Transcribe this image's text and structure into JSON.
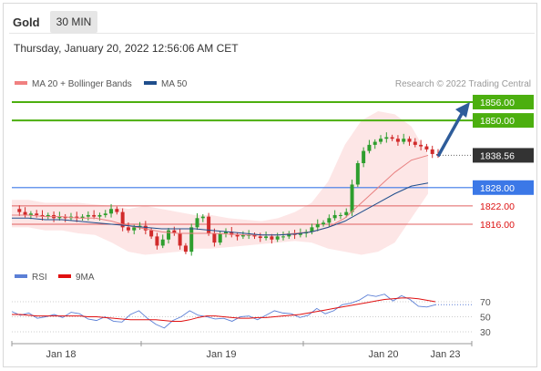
{
  "header": {
    "title": "Gold",
    "timeframe": "30 MIN"
  },
  "datetime": "Thursday, January 20, 2022 12:56:06 AM CET",
  "legend": {
    "items": [
      {
        "label": "MA 20 + Bollinger Bands",
        "color": "#f08080"
      },
      {
        "label": "MA 50",
        "color": "#1f4e8c"
      }
    ],
    "credit": "Research © 2022 Trading Central"
  },
  "rsi_legend": {
    "items": [
      {
        "label": "RSI",
        "color": "#5b7fd6"
      },
      {
        "label": "9MA",
        "color": "#e01010"
      }
    ]
  },
  "colors": {
    "resistance": "#4caf0f",
    "pivot": "#3b78e7",
    "support": "#e06060",
    "support_text": "#dd1111",
    "last_price": "#333333",
    "arrow": "#2e5c9a",
    "bull_candle": "#2e9e2e",
    "bear_candle": "#d12b2b",
    "band_fill": "#fde3e3"
  },
  "chart_data": [
    {
      "type": "candlestick",
      "title": "Gold",
      "timeframe": "30 MIN",
      "x_ticks": [
        "Jan 18",
        "Jan 19",
        "Jan 20",
        "Jan 23"
      ],
      "ylim": [
        1805,
        1862
      ],
      "levels": [
        {
          "label": "1856.00",
          "value": 1856.0,
          "kind": "resistance"
        },
        {
          "label": "1850.00",
          "value": 1850.0,
          "kind": "resistance"
        },
        {
          "label": "1838.56",
          "value": 1838.56,
          "kind": "last"
        },
        {
          "label": "1828.00",
          "value": 1828.0,
          "kind": "pivot"
        },
        {
          "label": "1822.00",
          "value": 1822.0,
          "kind": "support"
        },
        {
          "label": "1816.00",
          "value": 1816.0,
          "kind": "support"
        }
      ],
      "ohlc_path": [
        1821,
        1820,
        1819,
        1819.5,
        1819,
        1818.5,
        1819,
        1818,
        1818.5,
        1818,
        1818.5,
        1818,
        1818.5,
        1819,
        1818.5,
        1819,
        1819.5,
        1821,
        1820,
        1815,
        1814,
        1815,
        1815.5,
        1814,
        1812,
        1809,
        1811,
        1814,
        1813,
        1809,
        1807,
        1815,
        1818,
        1818.5,
        1813,
        1810,
        1813,
        1813.5,
        1812.5,
        1812,
        1812.5,
        1812.5,
        1812,
        1811.5,
        1812,
        1811,
        1812,
        1812,
        1813,
        1812.5,
        1813,
        1813.5,
        1815,
        1816,
        1816.5,
        1818,
        1819,
        1819,
        1820,
        1829,
        1836,
        1840,
        1842,
        1843,
        1844,
        1844.5,
        1844,
        1843,
        1844,
        1843,
        1842,
        1841.5,
        1840.5,
        1839,
        1838.56
      ],
      "ma20": [
        1819,
        1819,
        1818.5,
        1818.5,
        1818,
        1818,
        1817,
        1815.5,
        1814.5,
        1813.5,
        1813,
        1813,
        1813,
        1812.8,
        1812.5,
        1812.5,
        1812.5,
        1813,
        1813.5,
        1815,
        1818,
        1823,
        1828,
        1833,
        1837,
        1838.56
      ],
      "ma50": [
        1818,
        1818,
        1817.5,
        1817.5,
        1817,
        1816.5,
        1816,
        1815.5,
        1815,
        1814.5,
        1814.5,
        1814.5,
        1814,
        1813.5,
        1813,
        1812.5,
        1812.5,
        1812.8,
        1813.5,
        1815,
        1817,
        1820,
        1823,
        1826,
        1828.5,
        1829.5
      ],
      "bb_upper": [
        1824,
        1824,
        1823,
        1823,
        1823,
        1822.5,
        1822,
        1821,
        1822,
        1821,
        1820,
        1819,
        1819,
        1818,
        1817.5,
        1817,
        1818,
        1820,
        1823,
        1830,
        1842,
        1850,
        1853,
        1852,
        1848,
        1838.56
      ],
      "bb_lower": [
        1815,
        1815,
        1814,
        1814,
        1813,
        1812.5,
        1810,
        1807,
        1806,
        1806.5,
        1807,
        1808,
        1808,
        1808.5,
        1809,
        1809.5,
        1810,
        1810.5,
        1810,
        1808,
        1807,
        1806,
        1807,
        1810,
        1818,
        1826
      ],
      "projection": {
        "from": 1838.56,
        "to": 1856.0
      }
    },
    {
      "type": "line",
      "title": "RSI",
      "ylim": [
        20,
        85
      ],
      "y_ticks": [
        70,
        50,
        30
      ],
      "series": [
        {
          "name": "RSI",
          "values": [
            57,
            52,
            55,
            48,
            50,
            53,
            49,
            56,
            54,
            47,
            45,
            50,
            44,
            43,
            53,
            58,
            48,
            40,
            35,
            45,
            50,
            58,
            52,
            50,
            47,
            48,
            44,
            50,
            51,
            46,
            52,
            58,
            55,
            54,
            49,
            52,
            61,
            54,
            58,
            66,
            68,
            72,
            79,
            77,
            80,
            71,
            78,
            73,
            64,
            63,
            66
          ]
        },
        {
          "name": "9MA",
          "values": [
            53,
            53,
            52,
            51,
            51,
            51,
            51,
            51,
            51,
            50,
            50,
            49,
            48,
            47,
            46,
            46,
            46,
            46,
            45,
            44,
            44,
            46,
            49,
            51,
            51,
            50,
            49,
            48,
            48,
            49,
            49,
            50,
            51,
            52,
            53,
            55,
            57,
            59,
            61,
            63,
            65,
            67,
            69,
            71,
            73,
            74,
            75,
            75,
            74,
            72,
            70
          ]
        }
      ]
    }
  ]
}
